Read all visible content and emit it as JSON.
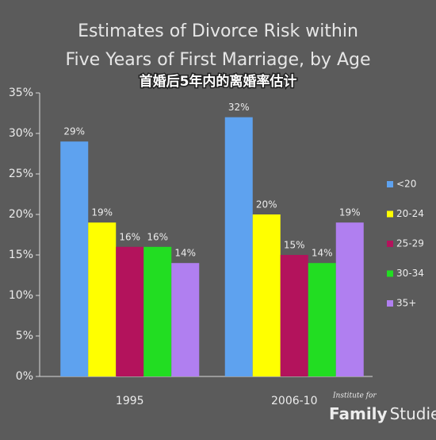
{
  "chart_data": {
    "type": "bar",
    "title": [
      "Estimates of Divorce Risk within",
      "Five Years of First Marriage, by Age"
    ],
    "subtitle": "首婚后5年内的离婚率估计",
    "categories": [
      "1995",
      "2006-10"
    ],
    "series": [
      {
        "name": "<20",
        "color": "#5ea2ef",
        "values": [
          29,
          32
        ],
        "value_labels": [
          "29%",
          "32%"
        ]
      },
      {
        "name": "20-24",
        "color": "#ffff00",
        "values": [
          19,
          20
        ],
        "value_labels": [
          "19%",
          "20%"
        ]
      },
      {
        "name": "25-29",
        "color": "#b3135c",
        "values": [
          16,
          15
        ],
        "value_labels": [
          "16%",
          "15%"
        ]
      },
      {
        "name": "30-34",
        "color": "#22dd22",
        "values": [
          16,
          14
        ],
        "value_labels": [
          "16%",
          "14%"
        ]
      },
      {
        "name": "35+",
        "color": "#b07ff0",
        "values": [
          14,
          19
        ],
        "value_labels": [
          "14%",
          "19%"
        ]
      }
    ],
    "ylim": [
      0,
      35
    ],
    "yticks": [
      {
        "value": 0,
        "label": "0%"
      },
      {
        "value": 5,
        "label": "5%"
      },
      {
        "value": 10,
        "label": "10%"
      },
      {
        "value": 15,
        "label": "15%"
      },
      {
        "value": 20,
        "label": "20%"
      },
      {
        "value": 25,
        "label": "25%"
      },
      {
        "value": 30,
        "label": "30%"
      },
      {
        "value": 35,
        "label": "35%"
      }
    ],
    "grid": false,
    "legend": "right",
    "branding": {
      "small": "Institute for",
      "bold": "Family",
      "rest": "Studies"
    }
  }
}
